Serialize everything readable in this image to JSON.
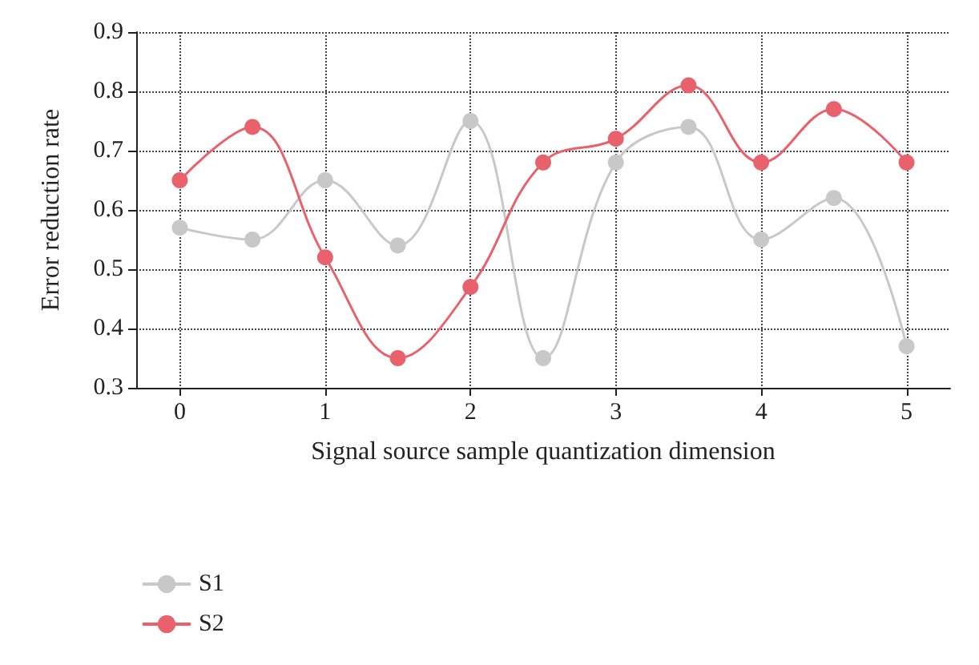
{
  "chart_data": {
    "type": "line",
    "xlabel": "Signal source sample quantization dimension",
    "ylabel": "Error reduction rate",
    "x": [
      0,
      0.5,
      1,
      1.5,
      2,
      2.5,
      3,
      3.5,
      4,
      4.5,
      5
    ],
    "series": [
      {
        "name": "S1",
        "color": "#c8c8c8",
        "values": [
          0.57,
          0.55,
          0.65,
          0.54,
          0.75,
          0.35,
          0.68,
          0.74,
          0.55,
          0.62,
          0.37
        ]
      },
      {
        "name": "S2",
        "color": "#e8616b",
        "values": [
          0.65,
          0.74,
          0.52,
          0.35,
          0.47,
          0.68,
          0.72,
          0.81,
          0.68,
          0.77,
          0.68
        ]
      }
    ],
    "xlim": [
      -0.3,
      5.3
    ],
    "xticks": [
      0,
      1,
      2,
      3,
      4,
      5
    ],
    "ylim": [
      0.3,
      0.9
    ],
    "yticks": [
      0.3,
      0.4,
      0.5,
      0.6,
      0.7,
      0.8,
      0.9
    ],
    "grid": true,
    "legend": "bottom left",
    "marker": "circle",
    "line_style": "solid"
  }
}
